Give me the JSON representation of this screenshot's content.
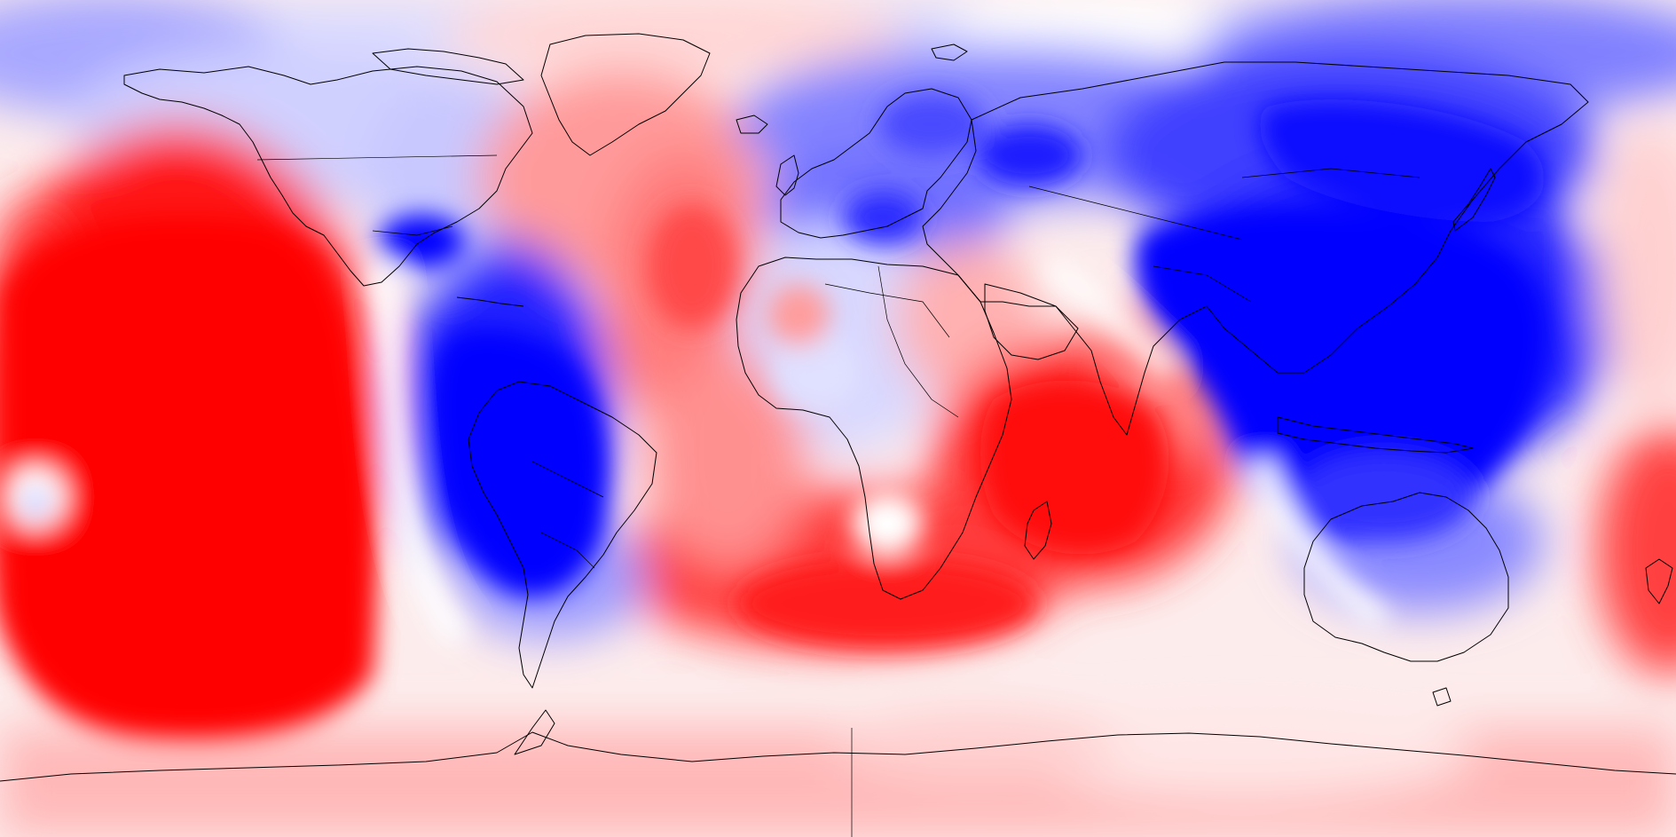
{
  "map": {
    "type": "global-anomaly-map",
    "projection": "equirectangular",
    "colors": {
      "strong_positive": "#ff0000",
      "moderate_positive": "#ff6666",
      "weak_positive": "#ffcccc",
      "neutral": "#ffffff",
      "weak_negative": "#ccccff",
      "moderate_negative": "#6666ff",
      "strong_negative": "#0000ff",
      "coastlines": "#000000"
    },
    "legend": null,
    "title": ""
  }
}
